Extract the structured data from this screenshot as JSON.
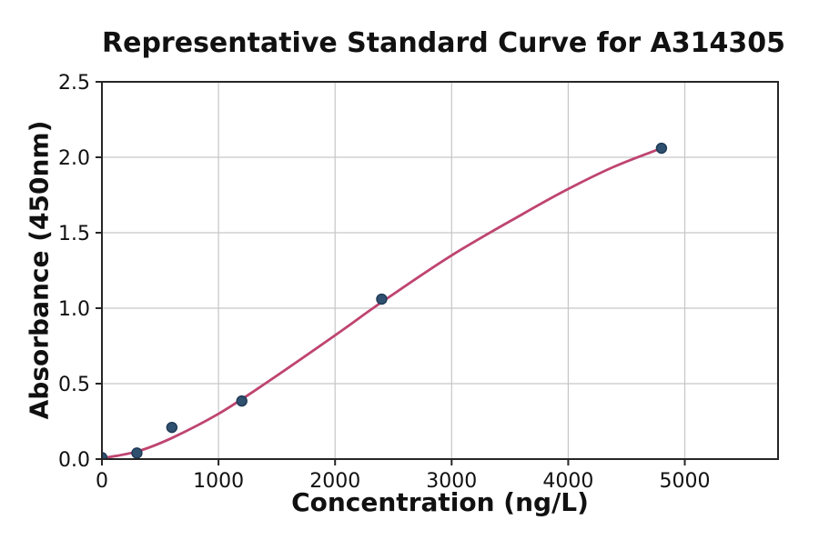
{
  "chart_data": {
    "type": "scatter",
    "title": "Representative Standard Curve for A314305",
    "xlabel": "Concentration (ng/L)",
    "ylabel": "Absorbance (450nm)",
    "xlim": [
      0,
      5800
    ],
    "ylim": [
      0,
      2.5
    ],
    "xtick_values": [
      0,
      1000,
      2000,
      3000,
      4000,
      5000
    ],
    "xtick_labels": [
      "0",
      "1000",
      "2000",
      "3000",
      "4000",
      "5000"
    ],
    "ytick_values": [
      0,
      0.5,
      1.0,
      1.5,
      2.0,
      2.5
    ],
    "ytick_labels": [
      "0.0",
      "0.5",
      "1.0",
      "1.5",
      "2.0",
      "2.5"
    ],
    "grid": true,
    "grid_color": "#c6c6c6",
    "spine_color": "#262626",
    "legend": "none",
    "series": [
      {
        "name": "4pl-fit-curve",
        "type": "line",
        "color": "#bf4470",
        "line_width": 2.8,
        "points": [
          [
            0,
            0.005
          ],
          [
            300,
            0.05
          ],
          [
            600,
            0.14
          ],
          [
            1000,
            0.3
          ],
          [
            1400,
            0.5
          ],
          [
            2000,
            0.82
          ],
          [
            2400,
            1.04
          ],
          [
            3000,
            1.35
          ],
          [
            3600,
            1.62
          ],
          [
            4000,
            1.79
          ],
          [
            4400,
            1.94
          ],
          [
            4800,
            2.06
          ]
        ]
      },
      {
        "name": "standard-points",
        "type": "scatter",
        "color": "#30506f",
        "edge_color": "#1e3a55",
        "marker_radius": 5.5,
        "points": [
          [
            0,
            0.01
          ],
          [
            300,
            0.04
          ],
          [
            600,
            0.21
          ],
          [
            1200,
            0.385
          ],
          [
            2400,
            1.06
          ],
          [
            4800,
            2.06
          ]
        ]
      }
    ]
  }
}
